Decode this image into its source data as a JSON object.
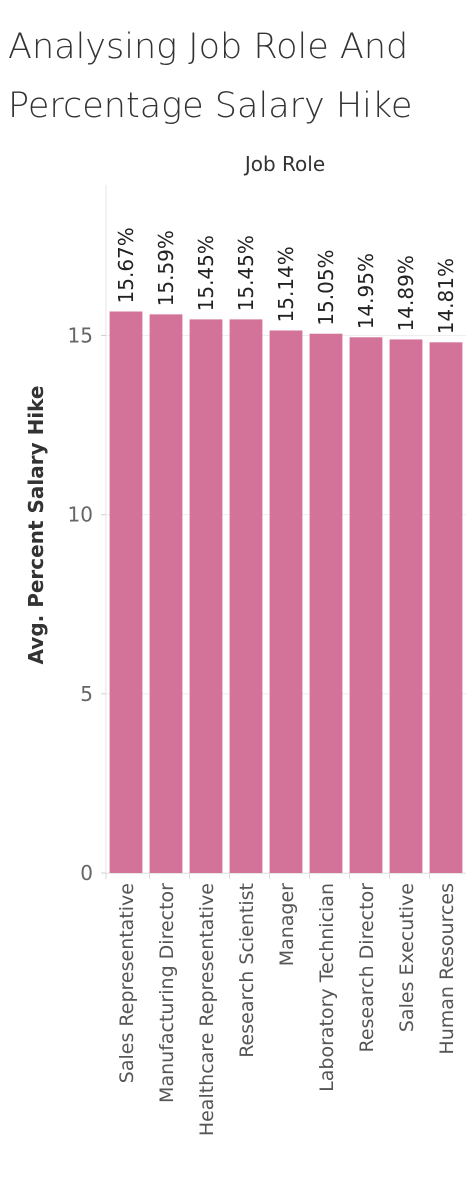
{
  "title": "Analysing Job Role And Percentage Salary Hike",
  "chart_data": {
    "type": "bar",
    "title": "Analysing Job Role And Percentage Salary Hike",
    "column_header": "Job Role",
    "ylabel": "Avg. Percent Salary Hike",
    "ylim": [
      0,
      19.2
    ],
    "y_ticks": [
      "0",
      "5",
      "10",
      "15"
    ],
    "categories": [
      "Sales Representative",
      "Manufacturing Director",
      "Healthcare Representative",
      "Research Scientist",
      "Manager",
      "Laboratory Technician",
      "Research Director",
      "Sales Executive",
      "Human Resources"
    ],
    "values": [
      15.67,
      15.59,
      15.45,
      15.45,
      15.14,
      15.05,
      14.95,
      14.89,
      14.81
    ],
    "value_labels": [
      "15.67%",
      "15.59%",
      "15.45%",
      "15.45%",
      "15.14%",
      "15.05%",
      "14.95%",
      "14.89%",
      "14.81%"
    ],
    "bar_color": "#d4739a",
    "grid": true
  }
}
